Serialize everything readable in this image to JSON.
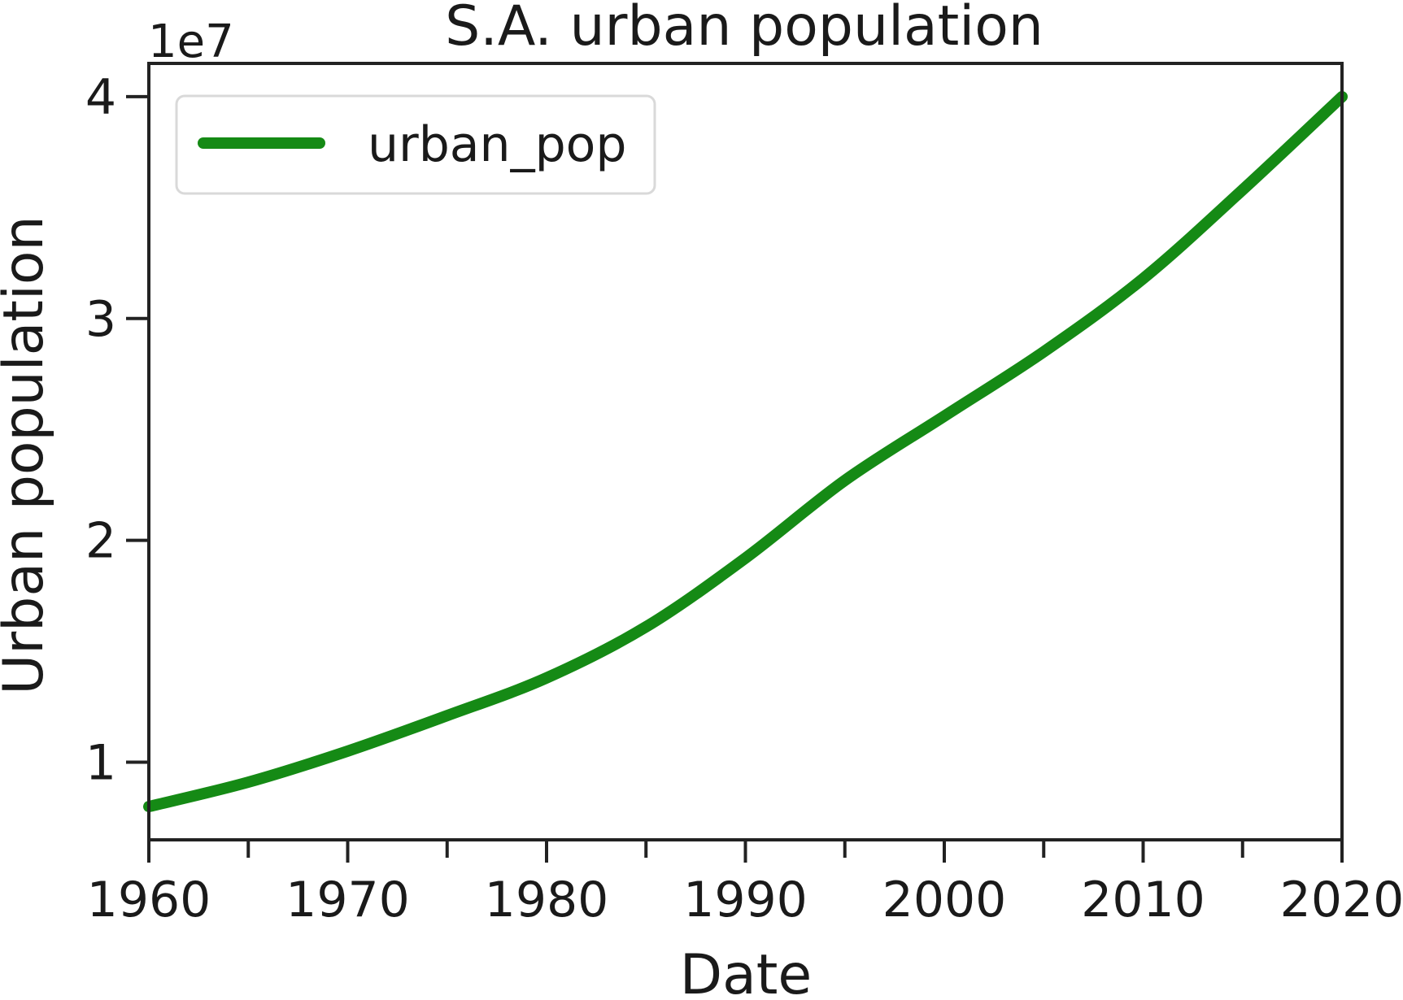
{
  "chart_data": {
    "type": "line",
    "title": "S.A. urban population",
    "xlabel": "Date",
    "ylabel": "Urban population",
    "y_offset_label": "1e7",
    "xlim": [
      1960,
      2020
    ],
    "ylim": [
      6500000,
      41500000
    ],
    "x_ticks": [
      1960,
      1970,
      1980,
      1990,
      2000,
      2010,
      2020
    ],
    "x_minor_ticks": [
      1965,
      1975,
      1985,
      1995,
      2005,
      2015
    ],
    "x_tick_labels": [
      "1960",
      "1970",
      "1980",
      "1990",
      "2000",
      "2010",
      "2020"
    ],
    "y_ticks": [
      10000000,
      20000000,
      30000000,
      40000000
    ],
    "y_tick_labels": [
      "1",
      "2",
      "3",
      "4"
    ],
    "legend_position": "top-left",
    "grid": false,
    "series": [
      {
        "name": "urban_pop",
        "color": "#158a15",
        "x": [
          1960,
          1965,
          1970,
          1975,
          1980,
          1985,
          1990,
          1995,
          2000,
          2005,
          2010,
          2015,
          2020
        ],
        "y": [
          8000000,
          9100000,
          10500000,
          12100000,
          13800000,
          16100000,
          19200000,
          22700000,
          25600000,
          28500000,
          31800000,
          35800000,
          40000000
        ]
      }
    ]
  }
}
